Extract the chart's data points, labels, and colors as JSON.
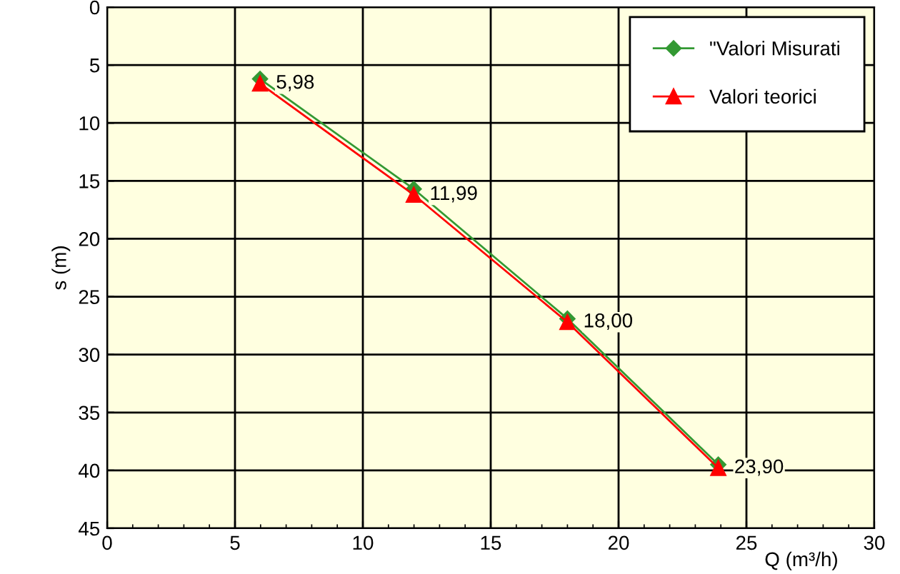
{
  "chart_data": {
    "type": "line",
    "xlabel": "Q (m³/h)",
    "ylabel": "s (m)",
    "xlim": [
      0,
      30
    ],
    "xticks": [
      0,
      5,
      10,
      15,
      20,
      25,
      30
    ],
    "ylim": [
      45,
      0
    ],
    "yticks": [
      0,
      5,
      10,
      15,
      20,
      25,
      30,
      35,
      40,
      45
    ],
    "grid": true,
    "legend": "top right",
    "series": [
      {
        "name": "\"Valori Misurati",
        "color": "#339933",
        "marker": "diamond",
        "line_style": "solid",
        "x": [
          5.98,
          11.99,
          18.0,
          23.9
        ],
        "values": [
          6.2,
          15.7,
          26.9,
          39.5
        ]
      },
      {
        "name": "Valori teorici",
        "color": "#ff0000",
        "marker": "triangle",
        "line_style": "solid",
        "x": [
          5.98,
          11.99,
          18.0,
          23.9
        ],
        "values": [
          6.6,
          16.2,
          27.2,
          39.8
        ]
      }
    ],
    "annotations": [
      {
        "text": "5,98",
        "x": 5.98,
        "y": 6.6
      },
      {
        "text": "11,99",
        "x": 11.99,
        "y": 16.2
      },
      {
        "text": "18,00",
        "x": 18.0,
        "y": 27.2
      },
      {
        "text": "23,90",
        "x": 23.9,
        "y": 39.8
      }
    ]
  }
}
